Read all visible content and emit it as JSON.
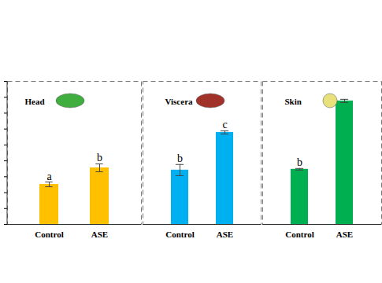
{
  "chart_data": [
    {
      "type": "bar",
      "title": "Head",
      "categories": [
        "Control",
        "ASE"
      ],
      "values": [
        2.52,
        3.56
      ],
      "errors": [
        0.15,
        0.25
      ],
      "annotations": [
        "a",
        "b"
      ],
      "color": "#ffc000",
      "ylim": [
        0,
        9
      ],
      "yticks": [
        0,
        1,
        2,
        3,
        4,
        5,
        6,
        7,
        8,
        9
      ],
      "tick_labels": "x"
    },
    {
      "type": "bar",
      "title": "Viscera",
      "categories": [
        "Control",
        "ASE"
      ],
      "values": [
        3.42,
        5.79
      ],
      "errors": [
        0.35,
        0.1
      ],
      "annotations": [
        "b",
        "c"
      ],
      "color": "#00b0f0",
      "ylim": [
        0,
        9
      ],
      "tick_labels": "x"
    },
    {
      "type": "bar",
      "title": "Skin",
      "categories": [
        "Control",
        "ASE"
      ],
      "values": [
        3.47,
        7.77
      ],
      "errors": [
        0.05,
        0.1
      ],
      "annotations": [
        "b",
        null
      ],
      "color": "#00b050",
      "ylim": [
        0,
        9
      ],
      "tick_labels": "x"
    }
  ]
}
